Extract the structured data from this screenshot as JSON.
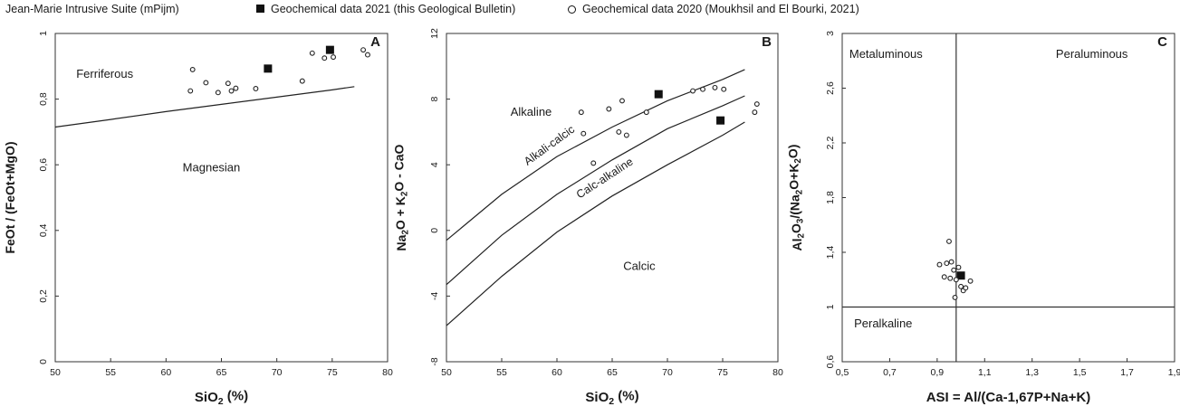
{
  "legend": {
    "suite": "Jean-Marie Intrusive Suite (mPijm)",
    "data2021": "Geochemical data 2021 (this Geological Bulletin)",
    "data2020": "Geochemical data 2020 (Moukhsil and El Bourki, 2021)"
  },
  "chart_data": [
    {
      "panel": "A",
      "type": "scatter",
      "xlabel": "SiO₂ (%)",
      "ylabel": "FeOt / (FeOt+MgO)",
      "xlim": [
        50,
        80
      ],
      "ylim": [
        0,
        1
      ],
      "xticks": [
        "50",
        "55",
        "60",
        "65",
        "70",
        "75",
        "80"
      ],
      "yticks": [
        "0",
        "0,2",
        "0,4",
        "0,6",
        "0,8",
        "1"
      ],
      "fields": [
        "Ferriferous",
        "Magnesian"
      ],
      "boundaries": [
        {
          "x": [
            50,
            55,
            60,
            65,
            70,
            75,
            77
          ],
          "y": [
            0.715,
            0.738,
            0.762,
            0.784,
            0.806,
            0.828,
            0.838
          ]
        }
      ],
      "series": [
        {
          "name": "Geochemical data 2021 (this Geological Bulletin)",
          "marker": "square",
          "x": [
            69.2,
            74.8
          ],
          "y": [
            0.893,
            0.95
          ]
        },
        {
          "name": "Geochemical data 2020 (Moukhsil and El Bourki, 2021)",
          "marker": "circle",
          "x": [
            62.2,
            62.4,
            63.6,
            64.7,
            65.6,
            65.9,
            66.3,
            68.1,
            72.3,
            73.2,
            74.3,
            75.1,
            77.8,
            78.2
          ],
          "y": [
            0.825,
            0.89,
            0.85,
            0.82,
            0.848,
            0.825,
            0.833,
            0.832,
            0.855,
            0.94,
            0.925,
            0.928,
            0.95,
            0.935
          ]
        }
      ]
    },
    {
      "panel": "B",
      "type": "scatter",
      "xlabel": "SiO₂ (%)",
      "ylabel": "Na₂O + K₂O - CaO",
      "xlim": [
        50,
        80
      ],
      "ylim": [
        -8,
        12
      ],
      "xticks": [
        "50",
        "55",
        "60",
        "65",
        "70",
        "75",
        "80"
      ],
      "yticks": [
        "-8",
        "-4",
        "0",
        "4",
        "8",
        "12"
      ],
      "fields": [
        "Alkaline",
        "Alkali-calcic",
        "Calc-alkaline",
        "Calcic"
      ],
      "boundaries": [
        {
          "x": [
            50,
            55,
            60,
            65,
            70,
            75,
            77
          ],
          "y": [
            -0.6,
            2.2,
            4.5,
            6.3,
            7.9,
            9.2,
            9.8
          ]
        },
        {
          "x": [
            50,
            55,
            60,
            65,
            70,
            75,
            77
          ],
          "y": [
            -3.3,
            -0.3,
            2.2,
            4.3,
            6.2,
            7.6,
            8.2
          ]
        },
        {
          "x": [
            50,
            55,
            60,
            65,
            70,
            75,
            77
          ],
          "y": [
            -5.8,
            -2.8,
            -0.1,
            2.1,
            4.0,
            5.8,
            6.6
          ]
        }
      ],
      "series": [
        {
          "name": "Geochemical data 2021 (this Geological Bulletin)",
          "marker": "square",
          "x": [
            69.2,
            74.8
          ],
          "y": [
            8.3,
            6.7
          ]
        },
        {
          "name": "Geochemical data 2020 (Moukhsil and El Bourki, 2021)",
          "marker": "circle",
          "x": [
            62.2,
            62.4,
            63.3,
            64.7,
            65.6,
            65.9,
            66.3,
            68.1,
            72.3,
            73.2,
            74.3,
            75.1,
            77.9,
            78.1
          ],
          "y": [
            7.2,
            5.9,
            4.1,
            7.4,
            6.0,
            7.9,
            5.8,
            7.2,
            8.5,
            8.6,
            8.7,
            8.6,
            7.2,
            7.7
          ]
        }
      ]
    },
    {
      "panel": "C",
      "type": "scatter",
      "xlabel": "ASI = Al/(Ca-1,67P+Na+K)",
      "ylabel": "Al₂O₃/(Na₂O+K₂O)",
      "xlim": [
        0.5,
        1.9
      ],
      "ylim": [
        0.6,
        3.0
      ],
      "xticks": [
        "0,5",
        "0,7",
        "0,9",
        "1,1",
        "1,3",
        "1,5",
        "1,7",
        "1,9"
      ],
      "yticks": [
        "0,6",
        "1",
        "1,4",
        "1,8",
        "2,2",
        "2,6",
        "3"
      ],
      "fields": [
        "Metaluminous",
        "Peraluminous",
        "Peralkaline"
      ],
      "divider_lines": {
        "x": 0.98,
        "y": 1.0
      },
      "series": [
        {
          "name": "Geochemical data 2021 (this Geological Bulletin)",
          "marker": "square",
          "x": [
            1.0
          ],
          "y": [
            1.23
          ]
        },
        {
          "name": "Geochemical data 2020 (Moukhsil and El Bourki, 2021)",
          "marker": "circle",
          "x": [
            0.91,
            0.93,
            0.94,
            0.95,
            0.955,
            0.96,
            0.97,
            0.975,
            0.98,
            1.0,
            1.01,
            1.02,
            1.04,
            0.99
          ],
          "y": [
            1.31,
            1.22,
            1.32,
            1.48,
            1.21,
            1.33,
            1.27,
            1.07,
            1.2,
            1.15,
            1.12,
            1.14,
            1.19,
            1.29
          ]
        }
      ]
    }
  ]
}
